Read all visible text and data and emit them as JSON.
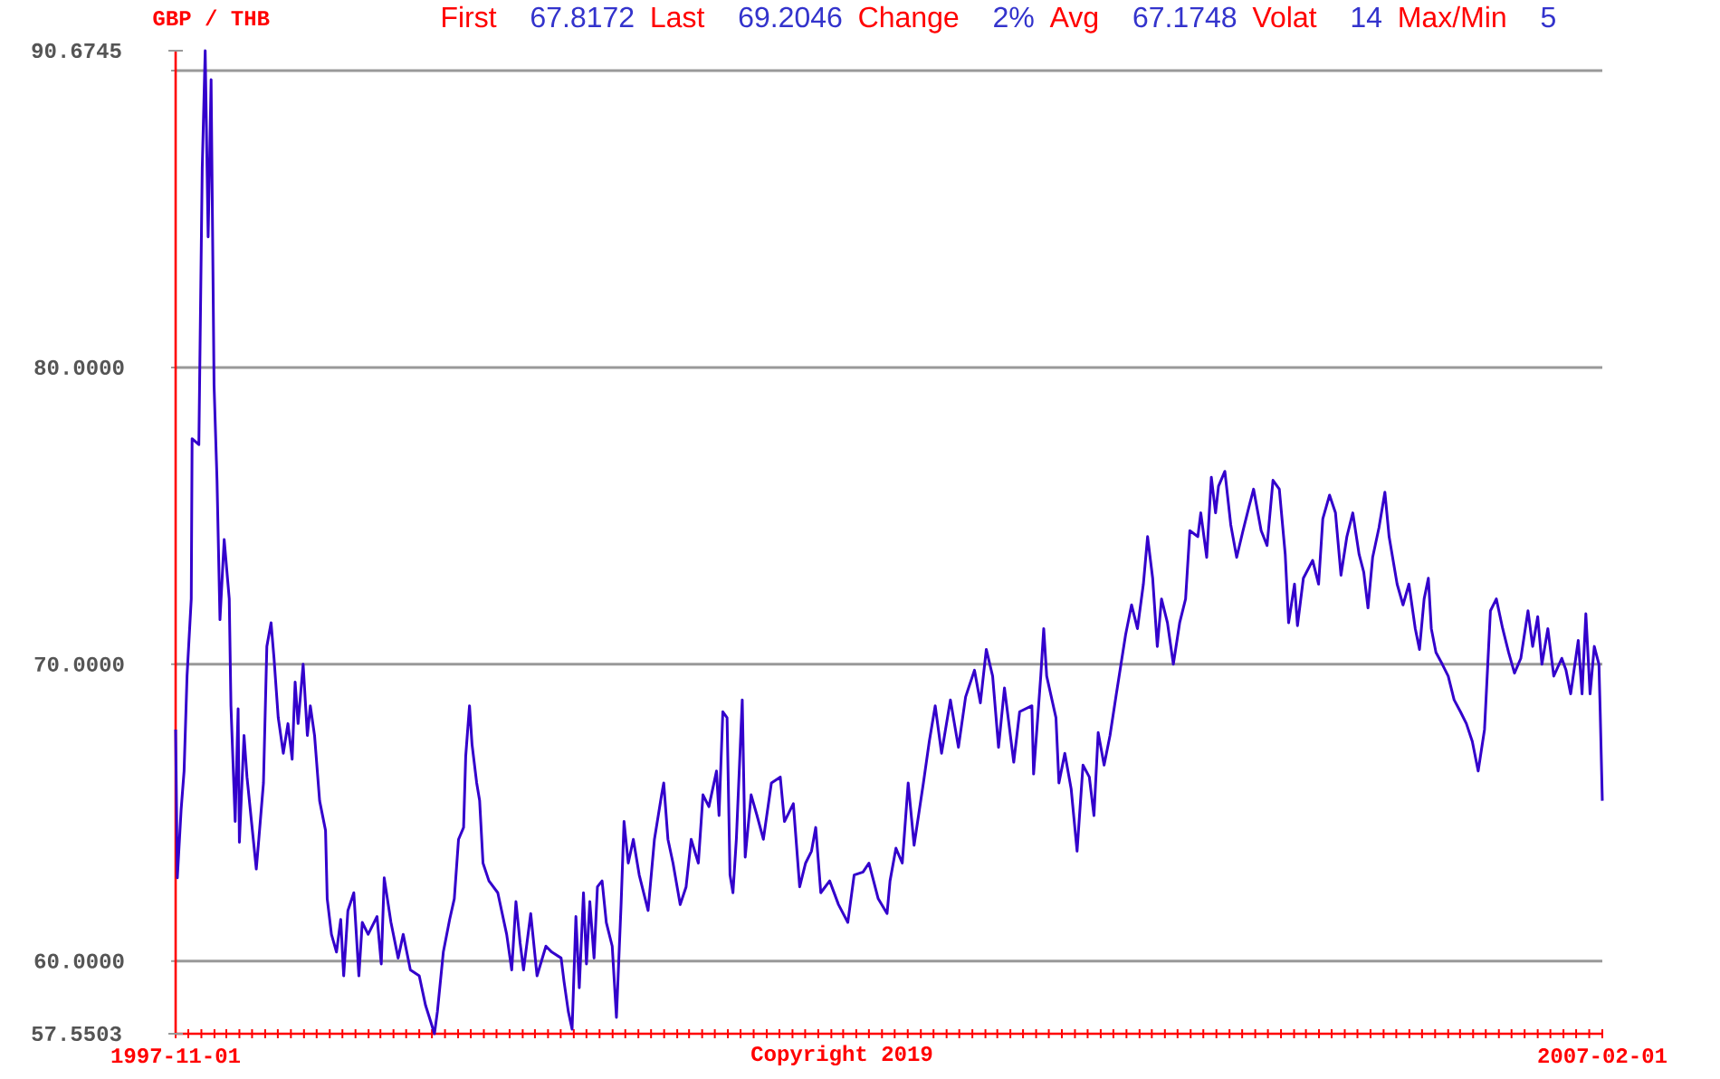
{
  "chart_data": {
    "type": "line",
    "title": "GBP / THB",
    "x": [
      "1997-11-01",
      "1997-11-05",
      "1997-11-14",
      "1997-11-21",
      "1997-11-28",
      "1997-12-08",
      "1997-12-10",
      "1997-12-26",
      "1998-01-03",
      "1998-01-10",
      "1998-01-17",
      "1998-01-24",
      "1998-01-31",
      "1998-02-07",
      "1998-02-14",
      "1998-02-24",
      "1998-03-08",
      "1998-03-12",
      "1998-03-22",
      "1998-03-29",
      "1998-04-01",
      "1998-04-12",
      "1998-04-19",
      "1998-05-11",
      "1998-05-17",
      "1998-05-28",
      "1998-06-05",
      "1998-06-15",
      "1998-06-22",
      "1998-07-02",
      "1998-07-14",
      "1998-07-25",
      "1998-08-04",
      "1998-08-11",
      "1998-08-18",
      "1998-08-30",
      "1998-09-09",
      "1998-09-16",
      "1998-09-26",
      "1998-10-08",
      "1998-10-22",
      "1998-10-26",
      "1998-11-05",
      "1998-11-17",
      "1998-11-27",
      "1998-12-04",
      "1998-12-14",
      "1998-12-28",
      "1999-01-09",
      "1999-01-17",
      "1999-01-31",
      "1999-02-21",
      "1999-03-03",
      "1999-03-10",
      "1999-03-26",
      "1999-04-12",
      "1999-04-24",
      "1999-05-11",
      "1999-06-01",
      "1999-06-16",
      "1999-06-25",
      "1999-07-07",
      "1999-07-14",
      "1999-07-28",
      "1999-08-12",
      "1999-08-23",
      "1999-09-02",
      "1999-09-14",
      "1999-09-19",
      "1999-09-28",
      "1999-10-04",
      "1999-10-15",
      "1999-10-22",
      "1999-10-30",
      "1999-11-13",
      "1999-12-04",
      "1999-12-25",
      "2000-01-06",
      "2000-01-16",
      "2000-01-26",
      "2000-02-03",
      "2000-02-20",
      "2000-03-06",
      "2000-03-27",
      "2000-04-10",
      "2000-05-02",
      "2000-05-09",
      "2000-05-19",
      "2000-05-28",
      "2000-06-06",
      "2000-06-14",
      "2000-06-24",
      "2000-07-01",
      "2000-07-09",
      "2000-07-19",
      "2000-07-27",
      "2000-08-07",
      "2000-08-17",
      "2000-08-31",
      "2000-09-10",
      "2000-09-21",
      "2000-09-28",
      "2000-10-08",
      "2000-10-20",
      "2000-11-03",
      "2000-11-24",
      "2000-12-09",
      "2000-12-26",
      "2000-12-31",
      "2001-01-10",
      "2001-01-22",
      "2001-02-08",
      "2001-02-22",
      "2001-03-06",
      "2001-03-23",
      "2001-04-03",
      "2001-04-17",
      "2001-05-05",
      "2001-05-11",
      "2001-05-20",
      "2001-05-30",
      "2001-06-06",
      "2001-06-13",
      "2001-06-21",
      "2001-07-05",
      "2001-07-12",
      "2001-07-26",
      "2001-08-09",
      "2001-08-24",
      "2001-09-12",
      "2001-10-03",
      "2001-10-13",
      "2001-11-03",
      "2001-11-18",
      "2001-12-02",
      "2001-12-16",
      "2001-12-26",
      "2002-01-07",
      "2002-01-28",
      "2002-02-18",
      "2002-03-12",
      "2002-03-27",
      "2002-04-17",
      "2002-05-01",
      "2002-05-23",
      "2002-06-13",
      "2002-06-20",
      "2002-07-04",
      "2002-07-19",
      "2002-08-02",
      "2002-08-16",
      "2002-09-07",
      "2002-09-21",
      "2002-10-05",
      "2002-10-20",
      "2002-11-10",
      "2002-11-29",
      "2002-12-16",
      "2003-01-06",
      "2003-01-20",
      "2003-02-03",
      "2003-02-18",
      "2003-03-04",
      "2003-03-18",
      "2003-04-09",
      "2003-04-23",
      "2003-05-22",
      "2003-05-26",
      "2003-06-12",
      "2003-06-19",
      "2003-06-26",
      "2003-07-18",
      "2003-07-25",
      "2003-08-08",
      "2003-08-23",
      "2003-09-06",
      "2003-09-20",
      "2003-10-05",
      "2003-10-16",
      "2003-10-26",
      "2003-11-09",
      "2003-11-23",
      "2003-12-08",
      "2003-12-19",
      "2003-12-30",
      "2004-01-13",
      "2004-01-27",
      "2004-02-10",
      "2004-02-20",
      "2004-03-03",
      "2004-03-14",
      "2004-03-24",
      "2004-04-07",
      "2004-04-21",
      "2004-05-06",
      "2004-05-20",
      "2004-05-30",
      "2004-06-18",
      "2004-06-25",
      "2004-07-09",
      "2004-07-20",
      "2004-07-30",
      "2004-08-06",
      "2004-08-21",
      "2004-09-04",
      "2004-09-18",
      "2004-10-03",
      "2004-10-17",
      "2004-10-28",
      "2004-11-15",
      "2004-11-29",
      "2004-12-13",
      "2004-12-28",
      "2005-01-11",
      "2005-01-19",
      "2005-02-02",
      "2005-02-09",
      "2005-02-23",
      "2005-03-17",
      "2005-03-31",
      "2005-04-10",
      "2005-04-26",
      "2005-05-10",
      "2005-05-23",
      "2005-06-06",
      "2005-06-20",
      "2005-07-05",
      "2005-07-16",
      "2005-07-26",
      "2005-08-06",
      "2005-08-21",
      "2005-09-04",
      "2005-09-14",
      "2005-10-03",
      "2005-10-17",
      "2005-10-31",
      "2005-11-15",
      "2005-11-25",
      "2005-12-06",
      "2005-12-16",
      "2005-12-23",
      "2006-01-03",
      "2006-01-18",
      "2006-02-01",
      "2006-02-15",
      "2006-03-02",
      "2006-03-16",
      "2006-03-30",
      "2006-04-13",
      "2006-04-28",
      "2006-05-05",
      "2006-05-12",
      "2006-05-26",
      "2006-06-10",
      "2006-06-24",
      "2006-07-08",
      "2006-07-23",
      "2006-08-09",
      "2006-08-20",
      "2006-09-01",
      "2006-09-11",
      "2006-09-25",
      "2006-10-09",
      "2006-10-28",
      "2006-11-07",
      "2006-11-18",
      "2006-12-06",
      "2006-12-15",
      "2006-12-24",
      "2007-01-03",
      "2007-01-13",
      "2007-01-24",
      "2007-01-27",
      "2007-02-01"
    ],
    "values": [
      67.8,
      62.8,
      65.1,
      66.4,
      69.6,
      72.2,
      77.6,
      77.4,
      86.7,
      90.6745,
      84.4,
      89.7,
      79.4,
      76.2,
      71.5,
      74.2,
      72.2,
      68.6,
      64.7,
      68.5,
      64.0,
      67.6,
      66.2,
      63.1,
      64.1,
      66.0,
      70.6,
      71.4,
      70.2,
      68.2,
      67.0,
      68.0,
      66.8,
      69.4,
      68.0,
      70.0,
      67.6,
      68.6,
      67.6,
      65.4,
      64.4,
      62.1,
      60.9,
      60.3,
      61.4,
      59.5,
      61.7,
      62.3,
      59.5,
      61.3,
      60.9,
      61.5,
      59.9,
      62.8,
      61.3,
      60.1,
      60.9,
      59.7,
      59.5,
      58.5,
      58.1,
      57.5503,
      58.3,
      60.3,
      61.4,
      62.1,
      64.1,
      64.5,
      66.9,
      68.6,
      67.3,
      66.0,
      65.4,
      63.3,
      62.7,
      62.3,
      60.9,
      59.7,
      62.0,
      60.6,
      59.7,
      61.6,
      59.5,
      60.5,
      60.3,
      60.1,
      59.3,
      58.3,
      57.7,
      61.5,
      59.1,
      62.3,
      59.9,
      62.0,
      60.1,
      62.5,
      62.7,
      61.3,
      60.5,
      58.1,
      61.9,
      64.7,
      63.3,
      64.1,
      62.9,
      61.7,
      64.1,
      65.6,
      66.0,
      64.1,
      63.3,
      61.9,
      62.5,
      64.1,
      63.3,
      65.6,
      65.2,
      66.4,
      64.9,
      68.4,
      68.2,
      62.9,
      62.3,
      64.1,
      68.8,
      63.5,
      65.6,
      64.9,
      64.1,
      66.0,
      66.2,
      64.7,
      65.3,
      62.5,
      63.3,
      63.7,
      64.5,
      62.3,
      62.7,
      61.9,
      61.3,
      62.9,
      63.0,
      63.3,
      62.1,
      61.6,
      62.7,
      63.8,
      63.3,
      66.0,
      63.9,
      66.0,
      67.4,
      68.6,
      67.0,
      68.8,
      67.2,
      68.9,
      69.8,
      68.7,
      70.5,
      69.6,
      67.2,
      69.2,
      66.7,
      68.4,
      68.6,
      66.3,
      69.6,
      71.2,
      69.6,
      68.2,
      66.0,
      67.0,
      65.8,
      63.7,
      66.6,
      66.2,
      64.9,
      67.7,
      66.6,
      67.6,
      69.0,
      70.0,
      71.0,
      72.0,
      71.2,
      72.7,
      74.3,
      72.9,
      70.6,
      72.2,
      71.4,
      70.0,
      71.4,
      72.2,
      74.5,
      74.3,
      75.1,
      73.6,
      76.3,
      75.1,
      76.0,
      76.5,
      74.7,
      73.6,
      74.5,
      75.3,
      75.9,
      74.5,
      74.0,
      76.2,
      75.9,
      73.7,
      71.4,
      72.7,
      71.3,
      72.9,
      73.5,
      72.7,
      74.9,
      75.7,
      75.1,
      73.0,
      74.3,
      75.1,
      73.7,
      73.1,
      71.9,
      73.6,
      74.6,
      75.8,
      74.3,
      72.7,
      72.0,
      72.7,
      71.2,
      70.5,
      72.2,
      72.9,
      71.2,
      70.4,
      70.0,
      69.6,
      68.8,
      68.4,
      68.0,
      67.4,
      66.4,
      67.8,
      69.8,
      71.8,
      72.2,
      71.2,
      70.4,
      69.7,
      70.2,
      71.8,
      70.6,
      71.6,
      70.0,
      71.2,
      69.6,
      70.2,
      69.8,
      69.0,
      70.8,
      69.0,
      71.7,
      69.0,
      70.6,
      70.0,
      68.4,
      65.4
    ],
    "color": "#3300cc",
    "xlim": [
      "1997-11-01",
      "2007-02-01"
    ],
    "xticks": [
      "1997-11-01",
      {
        "value": "1997-12-01",
        "label": null
      },
      {
        "value": "1998-01-01",
        "label": null
      },
      {
        "value": "1998-02-01",
        "label": null
      },
      {
        "value": "1998-03-01",
        "label": null
      },
      {
        "value": "1998-04-01",
        "label": null
      },
      {
        "value": "1998-05-01",
        "label": null
      },
      {
        "value": "1998-06-01",
        "label": null
      },
      {
        "value": "1998-07-01",
        "label": null
      },
      {
        "value": "1998-08-01",
        "label": null
      },
      {
        "value": "1998-09-01",
        "label": null
      },
      {
        "value": "1998-10-01",
        "label": null
      },
      {
        "value": "1998-11-01",
        "label": null
      },
      {
        "value": "1998-12-01",
        "label": null
      },
      {
        "value": "1999-01-01",
        "label": null
      },
      {
        "value": "1999-02-01",
        "label": null
      },
      {
        "value": "1999-03-01",
        "label": null
      },
      {
        "value": "1999-04-01",
        "label": null
      },
      {
        "value": "1999-05-01",
        "label": null
      },
      {
        "value": "1999-06-01",
        "label": null
      },
      {
        "value": "1999-07-01",
        "label": null
      },
      {
        "value": "1999-08-01",
        "label": null
      },
      {
        "value": "1999-09-01",
        "label": null
      },
      {
        "value": "1999-10-01",
        "label": null
      },
      {
        "value": "1999-11-01",
        "label": null
      },
      {
        "value": "1999-12-01",
        "label": null
      },
      {
        "value": "2000-01-01",
        "label": null
      },
      {
        "value": "2000-02-01",
        "label": null
      },
      {
        "value": "2000-03-01",
        "label": null
      },
      {
        "value": "2000-04-01",
        "label": null
      },
      {
        "value": "2000-05-01",
        "label": null
      },
      {
        "value": "2000-06-01",
        "label": null
      },
      {
        "value": "2000-07-01",
        "label": null
      },
      {
        "value": "2000-08-01",
        "label": null
      },
      {
        "value": "2000-09-01",
        "label": null
      },
      {
        "value": "2000-10-01",
        "label": null
      },
      {
        "value": "2000-11-01",
        "label": null
      },
      {
        "value": "2000-12-01",
        "label": null
      },
      {
        "value": "2001-01-01",
        "label": null
      },
      {
        "value": "2001-02-01",
        "label": null
      },
      {
        "value": "2001-03-01",
        "label": null
      },
      {
        "value": "2001-04-01",
        "label": null
      },
      {
        "value": "2001-05-01",
        "label": null
      },
      {
        "value": "2001-06-01",
        "label": null
      },
      {
        "value": "2001-07-01",
        "label": null
      },
      {
        "value": "2001-08-01",
        "label": null
      },
      {
        "value": "2001-09-01",
        "label": null
      },
      {
        "value": "2001-10-01",
        "label": null
      },
      {
        "value": "2001-11-01",
        "label": null
      },
      {
        "value": "2001-12-01",
        "label": null
      },
      {
        "value": "2002-01-01",
        "label": null
      },
      {
        "value": "2002-02-01",
        "label": null
      },
      {
        "value": "2002-03-01",
        "label": null
      },
      {
        "value": "2002-04-01",
        "label": null
      },
      {
        "value": "2002-05-01",
        "label": null
      },
      {
        "value": "2002-06-01",
        "label": null
      },
      {
        "value": "2002-07-01",
        "label": null
      },
      {
        "value": "2002-08-01",
        "label": null
      },
      {
        "value": "2002-09-01",
        "label": null
      },
      {
        "value": "2002-10-01",
        "label": null
      },
      {
        "value": "2002-11-01",
        "label": null
      },
      {
        "value": "2002-12-01",
        "label": null
      },
      {
        "value": "2003-01-01",
        "label": null
      },
      {
        "value": "2003-02-01",
        "label": null
      },
      {
        "value": "2003-03-01",
        "label": null
      },
      {
        "value": "2003-04-01",
        "label": null
      },
      {
        "value": "2003-05-01",
        "label": null
      },
      {
        "value": "2003-06-01",
        "label": null
      },
      {
        "value": "2003-07-01",
        "label": null
      },
      {
        "value": "2003-08-01",
        "label": null
      },
      {
        "value": "2003-09-01",
        "label": null
      },
      {
        "value": "2003-10-01",
        "label": null
      },
      {
        "value": "2003-11-01",
        "label": null
      },
      {
        "value": "2003-12-01",
        "label": null
      },
      {
        "value": "2004-01-01",
        "label": null
      },
      {
        "value": "2004-02-01",
        "label": null
      },
      {
        "value": "2004-03-01",
        "label": null
      },
      {
        "value": "2004-04-01",
        "label": null
      },
      {
        "value": "2004-05-01",
        "label": null
      },
      {
        "value": "2004-06-01",
        "label": null
      },
      {
        "value": "2004-07-01",
        "label": null
      },
      {
        "value": "2004-08-01",
        "label": null
      },
      {
        "value": "2004-09-01",
        "label": null
      },
      {
        "value": "2004-10-01",
        "label": null
      },
      {
        "value": "2004-11-01",
        "label": null
      },
      {
        "value": "2004-12-01",
        "label": null
      },
      {
        "value": "2005-01-01",
        "label": null
      },
      {
        "value": "2005-02-01",
        "label": null
      },
      {
        "value": "2005-03-01",
        "label": null
      },
      {
        "value": "2005-04-01",
        "label": null
      },
      {
        "value": "2005-05-01",
        "label": null
      },
      {
        "value": "2005-06-01",
        "label": null
      },
      {
        "value": "2005-07-01",
        "label": null
      },
      {
        "value": "2005-08-01",
        "label": null
      },
      {
        "value": "2005-09-01",
        "label": null
      },
      {
        "value": "2005-10-01",
        "label": null
      },
      {
        "value": "2005-11-01",
        "label": null
      },
      {
        "value": "2005-12-01",
        "label": null
      },
      {
        "value": "2006-01-01",
        "label": null
      },
      {
        "value": "2006-02-01",
        "label": null
      },
      {
        "value": "2006-03-01",
        "label": null
      },
      {
        "value": "2006-04-01",
        "label": null
      },
      {
        "value": "2006-05-01",
        "label": null
      },
      {
        "value": "2006-06-01",
        "label": null
      },
      {
        "value": "2006-07-01",
        "label": null
      },
      {
        "value": "2006-08-01",
        "label": null
      },
      {
        "value": "2006-09-01",
        "label": null
      },
      {
        "value": "2006-10-01",
        "label": null
      },
      {
        "value": "2006-11-01",
        "label": null
      },
      {
        "value": "2006-12-01",
        "label": null
      },
      {
        "value": "2007-01-01",
        "label": null
      },
      "2007-02-01"
    ],
    "ylim": [
      57.5503,
      90.6745
    ],
    "yticks": [
      57.5503,
      {
        "value": 60,
        "label": "60.0000"
      },
      {
        "value": 70,
        "label": "70.0000"
      },
      {
        "value": 80,
        "label": "80.0000"
      },
      {
        "value": 90,
        "label": null
      },
      90.6745
    ],
    "grid": "y",
    "annotations": [
      "First",
      "67.8172",
      "Last",
      "69.2046",
      "Change",
      "2%",
      "Avg",
      "67.1748",
      "Volat",
      "14",
      "Max/Min",
      "5",
      "Copyright 2019"
    ]
  }
}
